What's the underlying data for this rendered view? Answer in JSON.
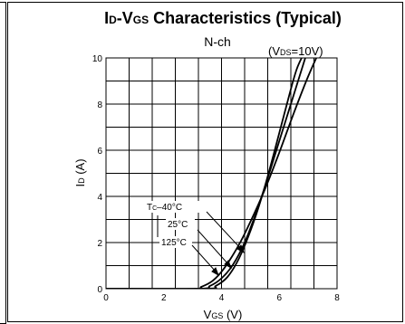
{
  "chart_data": {
    "type": "line",
    "title": {
      "main": "I",
      "sub1": "D",
      "mid": "-V",
      "sub2": "GS",
      "rest": " Characteristics (Typical)"
    },
    "subtitle": "N-ch",
    "condition": {
      "open": "(V",
      "sub": "DS",
      "close": "=10V)"
    },
    "xlabel": {
      "main": "V",
      "sub": "GS",
      "unit": "  (V)"
    },
    "ylabel": {
      "main": "I",
      "sub": "D",
      "unit": "  (A)"
    },
    "xlim": [
      0,
      8
    ],
    "ylim": [
      0,
      10
    ],
    "x_ticks": [
      "0",
      "2",
      "4",
      "6",
      "8"
    ],
    "y_ticks": [
      "0",
      "2",
      "4",
      "6",
      "8",
      "10"
    ],
    "grid": true,
    "series": [
      {
        "name": "–40°C",
        "label_prefix": "T",
        "label_sub": "C",
        "x": [
          0,
          3.0,
          3.3,
          3.7,
          4.1,
          4.6,
          5.0,
          5.5,
          6.0,
          6.5,
          7.0,
          7.5
        ],
        "y": [
          0,
          0,
          0.08,
          0.35,
          0.9,
          1.9,
          2.9,
          4.3,
          5.9,
          7.6,
          9.2,
          10.6
        ]
      },
      {
        "name": "25°C",
        "x": [
          0,
          3.2,
          3.6,
          4.0,
          4.4,
          4.8,
          5.2,
          5.6,
          6.0,
          6.5,
          7.0
        ],
        "y": [
          0,
          0,
          0.12,
          0.45,
          1.05,
          2.0,
          3.3,
          4.8,
          6.4,
          8.4,
          10.4
        ]
      },
      {
        "name": "125°C",
        "x": [
          0,
          3.45,
          3.8,
          4.2,
          4.6,
          5.0,
          5.4,
          5.8,
          6.2,
          6.6,
          6.95
        ],
        "y": [
          0,
          0,
          0.12,
          0.5,
          1.3,
          2.5,
          4.0,
          5.8,
          7.7,
          9.5,
          10.4
        ]
      }
    ],
    "line_color": "#000000",
    "grid_color": "#000000"
  }
}
